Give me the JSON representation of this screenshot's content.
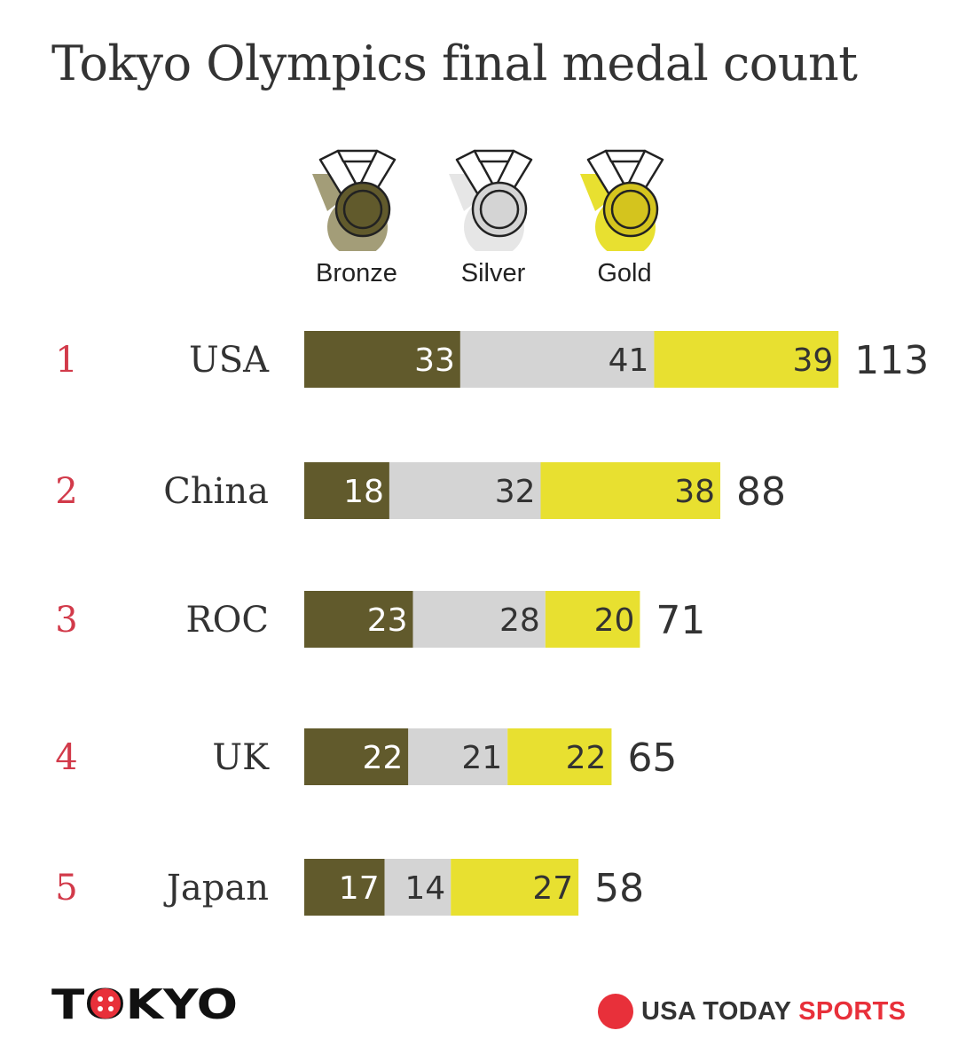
{
  "chart_data": {
    "type": "bar",
    "orientation": "horizontal",
    "stacked": true,
    "title": "Tokyo Olympics final medal count",
    "categories": [
      "USA",
      "China",
      "ROC",
      "UK",
      "Japan"
    ],
    "ranks": [
      "1",
      "2",
      "3",
      "4",
      "5"
    ],
    "series": [
      {
        "name": "Bronze",
        "values": [
          33,
          18,
          23,
          22,
          17
        ],
        "color": "#615a2c",
        "label_color": "#ffffff"
      },
      {
        "name": "Silver",
        "values": [
          41,
          32,
          28,
          21,
          14
        ],
        "color": "#d4d4d4",
        "label_color": "#333333"
      },
      {
        "name": "Gold",
        "values": [
          39,
          38,
          20,
          22,
          27
        ],
        "color": "#e8e030",
        "label_color": "#333333"
      }
    ],
    "totals": [
      113,
      88,
      71,
      65,
      58
    ],
    "legend_position": "top",
    "grid": false,
    "axes_visible": false
  },
  "colors": {
    "rank": "#d23a4a",
    "text": "#333333",
    "brand_red": "#e8303a"
  },
  "branding": {
    "logo_left": "TOKYO",
    "usatoday": "USA TODAY",
    "sports": "SPORTS"
  },
  "icons": {
    "bronze": "bronze-medal-icon",
    "silver": "silver-medal-icon",
    "gold": "gold-medal-icon",
    "brand": "usa-today-dot-icon"
  }
}
